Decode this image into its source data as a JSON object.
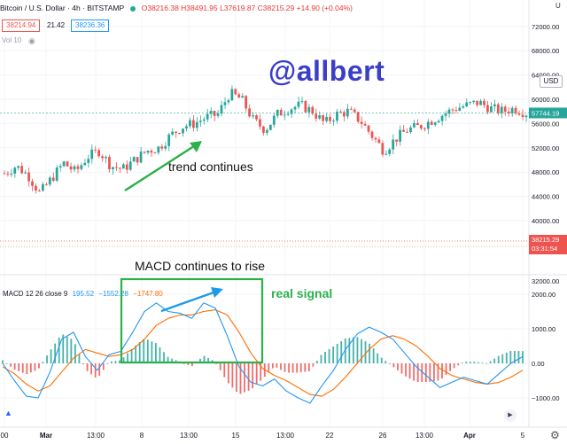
{
  "header": {
    "symbol": "Bitcoin / U.S. Dollar · 4h · BITSTAMP",
    "ohlc": "O38216.38 H38491.95 L37619.87 C38215.29 +14.90 (+0.04%)",
    "sell_price": "38214.94",
    "spread": "21.42",
    "buy_price": "38236.36",
    "volume_label": "Vol 10",
    "corner_label": "U"
  },
  "watermark": "@allbert",
  "annotations": {
    "trend": "trend continues",
    "macd_rise": "MACD continues to rise",
    "signal": "real signal"
  },
  "macd_legend": {
    "label": "MACD 12 26 close 9",
    "v1": "195.52",
    "v2": "−1552.28",
    "v3": "−1747.80"
  },
  "price_axis": {
    "currency_button": "USD",
    "ticks": [
      "72000.00",
      "68000.00",
      "64000.00",
      "60000.00",
      "56000.00",
      "52000.00",
      "48000.00",
      "44000.00",
      "40000.00",
      "32000.00"
    ],
    "last_price": "57744.19",
    "marker_price": "38215.29",
    "marker_time": "03:31:54"
  },
  "macd_axis": {
    "ticks": [
      "2000.00",
      "1000.00",
      "0.00",
      "−1000.00"
    ]
  },
  "time_axis": {
    "labels": [
      "00",
      "Mar",
      "13:00",
      "8",
      "13:00",
      "15",
      "13:00",
      "22",
      "26",
      "13:00",
      "Apr",
      "5"
    ]
  },
  "colors": {
    "up": "#26a69a",
    "down": "#ef5350",
    "macd_line": "#2196f3",
    "signal_line": "#ff6d00",
    "annotation_green": "#2bb04a",
    "annotation_blue": "#1e9be8",
    "watermark": "#3b3fc8"
  },
  "icons": {
    "eye": "eye-icon",
    "settings": "gear-icon",
    "play": "play-icon",
    "zoom": "zoom-icon",
    "status": "green-dot-icon"
  },
  "chart_data": [
    {
      "type": "candlestick",
      "title": "Bitcoin / U.S. Dollar · 4h · BITSTAMP",
      "xlabel": "",
      "ylabel": "",
      "ylim": [
        40000,
        72000
      ],
      "grid": true,
      "x": [
        "00",
        "Mar",
        "13:00",
        "8",
        "13:00",
        "15",
        "13:00",
        "22",
        "26",
        "13:00",
        "Apr",
        "5"
      ],
      "close_path": [
        [
          0,
          47800
        ],
        [
          4,
          49000
        ],
        [
          8,
          47500
        ],
        [
          12,
          44500
        ],
        [
          16,
          47000
        ],
        [
          20,
          49500
        ],
        [
          24,
          48000
        ],
        [
          28,
          50500
        ],
        [
          32,
          51500
        ],
        [
          36,
          49000
        ],
        [
          40,
          48500
        ],
        [
          44,
          50000
        ],
        [
          48,
          51500
        ],
        [
          52,
          52000
        ],
        [
          56,
          54000
        ],
        [
          60,
          55500
        ],
        [
          64,
          56000
        ],
        [
          68,
          57000
        ],
        [
          72,
          57500
        ],
        [
          76,
          61000
        ],
        [
          80,
          60000
        ],
        [
          84,
          56500
        ],
        [
          88,
          55000
        ],
        [
          92,
          57500
        ],
        [
          96,
          58500
        ],
        [
          100,
          59000
        ],
        [
          104,
          58000
        ],
        [
          108,
          56000
        ],
        [
          112,
          57500
        ],
        [
          116,
          58000
        ],
        [
          120,
          56500
        ],
        [
          124,
          54000
        ],
        [
          128,
          51500
        ],
        [
          132,
          53500
        ],
        [
          136,
          55000
        ],
        [
          140,
          55500
        ],
        [
          144,
          56500
        ],
        [
          148,
          57500
        ],
        [
          152,
          58500
        ],
        [
          156,
          59000
        ],
        [
          160,
          59500
        ],
        [
          164,
          58500
        ],
        [
          168,
          58000
        ],
        [
          172,
          58500
        ],
        [
          176,
          57744
        ]
      ]
    },
    {
      "type": "line",
      "title": "MACD 12 26 close 9",
      "xlabel": "",
      "ylabel": "",
      "ylim": [
        -1300,
        2300
      ],
      "grid": true,
      "series": [
        {
          "name": "",
          "values": [
            0,
            -500,
            -950,
            -1000,
            -250,
            700,
            900,
            200,
            -200,
            250,
            350,
            900,
            1500,
            1750,
            1500,
            1450,
            1300,
            1750,
            1600,
            800,
            -100,
            -550,
            -650,
            -450,
            -800,
            -1000,
            -1150,
            -650,
            -200,
            400,
            850,
            1050,
            900,
            700,
            300,
            -100,
            -400,
            -700,
            -550,
            -400,
            -500,
            -600,
            -300,
            0,
            195
          ]
        },
        {
          "name": "",
          "values": [
            -100,
            -300,
            -600,
            -800,
            -650,
            -250,
            150,
            400,
            300,
            200,
            250,
            400,
            700,
            1100,
            1300,
            1400,
            1400,
            1500,
            1550,
            1400,
            900,
            300,
            -150,
            -350,
            -500,
            -700,
            -900,
            -950,
            -750,
            -400,
            0,
            400,
            700,
            800,
            700,
            500,
            200,
            -150,
            -350,
            -450,
            -550,
            -600,
            -550,
            -400,
            -200
          ]
        }
      ]
    }
  ]
}
